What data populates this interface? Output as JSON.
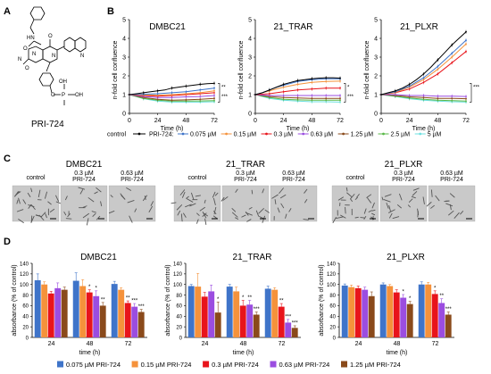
{
  "panels": {
    "a": "A",
    "b": "B",
    "c": "C",
    "d": "D"
  },
  "compound": {
    "name": "PRI-724",
    "atoms": {
      "nh": "HN",
      "o1": "O",
      "n1": "N",
      "n2": "N",
      "n3": "N",
      "o2": "O",
      "o3": "O",
      "o4": "O",
      "p": "P",
      "oh1": "OH",
      "oh2": "OH",
      "n_quin": "N"
    }
  },
  "growth": {
    "ylabel": "n-fold cell confluence",
    "xlabel": "Time (h)",
    "xticks": [
      "0",
      "24",
      "48",
      "72"
    ],
    "charts": [
      {
        "title": "DMBC21",
        "yticks": [
          "0",
          "1",
          "2",
          "3",
          "4",
          "5"
        ],
        "ymax": 5,
        "significance": [
          "**",
          "***"
        ],
        "series": [
          {
            "x": [
              0,
              6,
              12,
              18,
              24,
              30,
              36,
              42,
              48,
              54,
              60,
              66,
              72
            ],
            "y": [
              1.0,
              1.05,
              1.1,
              1.15,
              1.2,
              1.25,
              1.35,
              1.4,
              1.45,
              1.5,
              1.55,
              1.58,
              1.6
            ],
            "color": "#000000"
          },
          {
            "x": [
              0,
              12,
              24,
              36,
              48,
              60,
              72
            ],
            "y": [
              1.0,
              1.02,
              1.05,
              1.1,
              1.15,
              1.25,
              1.35
            ],
            "color": "#3F74C9"
          },
          {
            "x": [
              0,
              12,
              24,
              36,
              48,
              60,
              72
            ],
            "y": [
              1.0,
              0.98,
              0.97,
              1.0,
              1.05,
              1.1,
              1.2
            ],
            "color": "#F5923B"
          },
          {
            "x": [
              0,
              12,
              24,
              36,
              48,
              60,
              72
            ],
            "y": [
              1.0,
              0.95,
              0.92,
              0.95,
              1.0,
              1.05,
              1.1
            ],
            "color": "#E8141B"
          },
          {
            "x": [
              0,
              12,
              24,
              36,
              48,
              60,
              72
            ],
            "y": [
              1.0,
              0.9,
              0.85,
              0.85,
              0.88,
              0.9,
              0.95
            ],
            "color": "#9B4DE0"
          },
          {
            "x": [
              0,
              12,
              24,
              36,
              48,
              60,
              72
            ],
            "y": [
              1.0,
              0.85,
              0.75,
              0.7,
              0.72,
              0.75,
              0.8
            ],
            "color": "#8A4A1B"
          },
          {
            "x": [
              0,
              12,
              24,
              36,
              48,
              60,
              72
            ],
            "y": [
              1.0,
              0.8,
              0.7,
              0.65,
              0.65,
              0.66,
              0.68
            ],
            "color": "#58B847"
          },
          {
            "x": [
              0,
              12,
              24,
              36,
              48,
              60,
              72
            ],
            "y": [
              1.0,
              0.78,
              0.65,
              0.6,
              0.6,
              0.6,
              0.62
            ],
            "color": "#6DE0E0"
          }
        ]
      },
      {
        "title": "21_TRAR",
        "yticks": [
          "0",
          "1",
          "2",
          "3",
          "4",
          "5"
        ],
        "ymax": 5,
        "significance": [
          "*",
          "***"
        ],
        "series": [
          {
            "x": [
              0,
              6,
              12,
              18,
              24,
              30,
              36,
              42,
              48,
              54,
              60,
              66,
              72
            ],
            "y": [
              1.0,
              1.1,
              1.25,
              1.4,
              1.55,
              1.65,
              1.75,
              1.8,
              1.85,
              1.88,
              1.9,
              1.9,
              1.88
            ],
            "color": "#000000"
          },
          {
            "x": [
              0,
              6,
              12,
              18,
              24,
              30,
              36,
              42,
              48,
              54,
              60,
              66,
              72
            ],
            "y": [
              1.0,
              1.1,
              1.25,
              1.4,
              1.5,
              1.6,
              1.7,
              1.75,
              1.8,
              1.82,
              1.85,
              1.85,
              1.85
            ],
            "color": "#3F74C9"
          },
          {
            "x": [
              0,
              12,
              24,
              36,
              48,
              60,
              72
            ],
            "y": [
              1.0,
              1.2,
              1.4,
              1.55,
              1.65,
              1.7,
              1.72
            ],
            "color": "#F5923B"
          },
          {
            "x": [
              0,
              12,
              24,
              36,
              48,
              60,
              72
            ],
            "y": [
              1.0,
              1.05,
              1.15,
              1.25,
              1.3,
              1.35,
              1.35
            ],
            "color": "#E8141B"
          },
          {
            "x": [
              0,
              12,
              24,
              36,
              48,
              60,
              72
            ],
            "y": [
              1.0,
              0.95,
              0.95,
              0.95,
              0.95,
              0.95,
              0.95
            ],
            "color": "#9B4DE0"
          },
          {
            "x": [
              0,
              12,
              24,
              36,
              48,
              60,
              72
            ],
            "y": [
              1.0,
              0.9,
              0.85,
              0.82,
              0.8,
              0.8,
              0.8
            ],
            "color": "#8A4A1B"
          },
          {
            "x": [
              0,
              12,
              24,
              36,
              48,
              60,
              72
            ],
            "y": [
              1.0,
              0.85,
              0.75,
              0.72,
              0.7,
              0.7,
              0.7
            ],
            "color": "#58B847"
          },
          {
            "x": [
              0,
              12,
              24,
              36,
              48,
              60,
              72
            ],
            "y": [
              1.0,
              0.8,
              0.7,
              0.65,
              0.62,
              0.62,
              0.6
            ],
            "color": "#6DE0E0"
          }
        ]
      },
      {
        "title": "21_PLXR",
        "yticks": [
          "0",
          "1",
          "2",
          "3",
          "4",
          "5"
        ],
        "ymax": 5,
        "significance": [
          "***"
        ],
        "series": [
          {
            "x": [
              0,
              6,
              12,
              18,
              24,
              30,
              36,
              42,
              48,
              54,
              60,
              66,
              72
            ],
            "y": [
              1.0,
              1.1,
              1.2,
              1.35,
              1.55,
              1.8,
              2.1,
              2.45,
              2.85,
              3.25,
              3.65,
              4.0,
              4.35
            ],
            "color": "#000000"
          },
          {
            "x": [
              0,
              12,
              24,
              36,
              48,
              60,
              72
            ],
            "y": [
              1.0,
              1.15,
              1.45,
              1.9,
              2.5,
              3.2,
              3.9
            ],
            "color": "#3F74C9"
          },
          {
            "x": [
              0,
              12,
              24,
              36,
              48,
              60,
              72
            ],
            "y": [
              1.0,
              1.12,
              1.4,
              1.8,
              2.35,
              3.0,
              3.7
            ],
            "color": "#F5923B"
          },
          {
            "x": [
              0,
              12,
              24,
              36,
              48,
              60,
              72
            ],
            "y": [
              1.0,
              1.1,
              1.3,
              1.65,
              2.1,
              2.7,
              3.3
            ],
            "color": "#E8141B"
          },
          {
            "x": [
              0,
              12,
              24,
              36,
              48,
              60,
              72
            ],
            "y": [
              1.0,
              1.0,
              0.95,
              0.95,
              0.92,
              0.92,
              0.9
            ],
            "color": "#9B4DE0"
          },
          {
            "x": [
              0,
              12,
              24,
              36,
              48,
              60,
              72
            ],
            "y": [
              1.0,
              0.95,
              0.88,
              0.85,
              0.8,
              0.8,
              0.78
            ],
            "color": "#8A4A1B"
          },
          {
            "x": [
              0,
              12,
              24,
              36,
              48,
              60,
              72
            ],
            "y": [
              1.0,
              0.92,
              0.82,
              0.75,
              0.7,
              0.68,
              0.65
            ],
            "color": "#58B847"
          },
          {
            "x": [
              0,
              12,
              24,
              36,
              48,
              60,
              72
            ],
            "y": [
              1.0,
              0.9,
              0.78,
              0.7,
              0.65,
              0.62,
              0.6
            ],
            "color": "#6DE0E0"
          }
        ]
      }
    ],
    "legend": {
      "control": "control",
      "prefix": "PRI-724:",
      "items": [
        {
          "label": "0.075 µM",
          "color": "#3F74C9"
        },
        {
          "label": "0.15 µM",
          "color": "#F5923B"
        },
        {
          "label": "0.3 µM",
          "color": "#E8141B"
        },
        {
          "label": "0.63 µM",
          "color": "#9B4DE0"
        },
        {
          "label": "1.25 µM",
          "color": "#8A4A1B"
        },
        {
          "label": "2.5 µM",
          "color": "#58B847"
        },
        {
          "label": "5 µM",
          "color": "#6DE0E0"
        }
      ]
    }
  },
  "micrographs": {
    "groups": [
      {
        "title": "DMBC21",
        "labels": [
          "control",
          "0.3 µM\nPRI-724",
          "0.63 µM\nPRI-724"
        ]
      },
      {
        "title": "21_TRAR",
        "labels": [
          "control",
          "0.3 µM\nPRI-724",
          "0.63 µM\nPRI-724"
        ]
      },
      {
        "title": "21_PLXR",
        "labels": [
          "control",
          "0.3 µM\nPRI-724",
          "0.63 µM\nPRI-724"
        ]
      }
    ]
  },
  "chart_data": [
    {
      "type": "bar",
      "title": "DMBC21",
      "categories": [
        "24",
        "48",
        "72"
      ],
      "xlabel": "time (h)",
      "ylabel": "absorbance (% of control)",
      "ylim": [
        0,
        140
      ],
      "yticks": [
        "0",
        "20",
        "40",
        "60",
        "80",
        "100",
        "120",
        "140"
      ],
      "series": [
        {
          "name": "0.075 µM PRI-724",
          "color": "#3F74C9",
          "values": [
            108,
            107,
            101
          ],
          "err": [
            12,
            15,
            5
          ]
        },
        {
          "name": "0.15 µM PRI-724",
          "color": "#F5923B",
          "values": [
            100,
            97,
            90
          ],
          "err": [
            5,
            12,
            4
          ]
        },
        {
          "name": "0.3 µM PRI-724",
          "color": "#E8141B",
          "values": [
            83,
            85,
            65
          ],
          "err": [
            4,
            5,
            4
          ]
        },
        {
          "name": "0.63 µM PRI-724",
          "color": "#9B4DE0",
          "values": [
            93,
            78,
            58
          ],
          "err": [
            10,
            10,
            6
          ]
        },
        {
          "name": "1.25 µM PRI-724",
          "color": "#8A4A1B",
          "values": [
            90,
            60,
            48
          ],
          "err": [
            5,
            6,
            5
          ]
        }
      ],
      "significance": [
        [
          "",
          "",
          "",
          "",
          ""
        ],
        [
          "",
          "",
          "*",
          "*",
          "**"
        ],
        [
          "",
          "",
          "**",
          "***",
          "***"
        ]
      ]
    },
    {
      "type": "bar",
      "title": "21_TRAR",
      "categories": [
        "24",
        "48",
        "72"
      ],
      "xlabel": "time (h)",
      "ylabel": "absorbance (% of control)",
      "ylim": [
        0,
        140
      ],
      "yticks": [
        "0",
        "20",
        "40",
        "60",
        "80",
        "100",
        "120",
        "140"
      ],
      "series": [
        {
          "name": "0.075 µM PRI-724",
          "color": "#3F74C9",
          "values": [
            97,
            96,
            92
          ],
          "err": [
            3,
            4,
            5
          ]
        },
        {
          "name": "0.15 µM PRI-724",
          "color": "#F5923B",
          "values": [
            96,
            87,
            90
          ],
          "err": [
            25,
            8,
            4
          ]
        },
        {
          "name": "0.3 µM PRI-724",
          "color": "#E8141B",
          "values": [
            77,
            60,
            58
          ],
          "err": [
            8,
            10,
            6
          ]
        },
        {
          "name": "0.63 µM PRI-724",
          "color": "#9B4DE0",
          "values": [
            87,
            62,
            28
          ],
          "err": [
            12,
            8,
            6
          ]
        },
        {
          "name": "1.25 µM PRI-724",
          "color": "#8A4A1B",
          "values": [
            47,
            43,
            18
          ],
          "err": [
            20,
            5,
            4
          ]
        }
      ],
      "significance": [
        [
          "",
          "",
          "",
          "",
          "*"
        ],
        [
          "",
          "",
          "*",
          "**",
          "***"
        ],
        [
          "",
          "",
          "**",
          "***",
          "***"
        ]
      ]
    },
    {
      "type": "bar",
      "title": "21_PLXR",
      "categories": [
        "24",
        "48",
        "72"
      ],
      "xlabel": "time (h)",
      "ylabel": "absorbance (% of control)",
      "ylim": [
        0,
        140
      ],
      "yticks": [
        "0",
        "20",
        "40",
        "60",
        "80",
        "100",
        "120",
        "140"
      ],
      "series": [
        {
          "name": "0.075 µM PRI-724",
          "color": "#3F74C9",
          "values": [
            98,
            100,
            100
          ],
          "err": [
            3,
            3,
            5
          ]
        },
        {
          "name": "0.15 µM PRI-724",
          "color": "#F5923B",
          "values": [
            95,
            97,
            100
          ],
          "err": [
            4,
            3,
            4
          ]
        },
        {
          "name": "0.3 µM PRI-724",
          "color": "#E8141B",
          "values": [
            93,
            85,
            82
          ],
          "err": [
            4,
            5,
            6
          ]
        },
        {
          "name": "0.63 µM PRI-724",
          "color": "#9B4DE0",
          "values": [
            90,
            75,
            65
          ],
          "err": [
            5,
            6,
            8
          ]
        },
        {
          "name": "1.25 µM PRI-724",
          "color": "#8A4A1B",
          "values": [
            78,
            63,
            43
          ],
          "err": [
            8,
            5,
            5
          ]
        }
      ],
      "significance": [
        [
          "",
          "",
          "",
          "",
          ""
        ],
        [
          "",
          "",
          "",
          "*",
          "*"
        ],
        [
          "",
          "",
          "*",
          "**",
          "***"
        ]
      ]
    }
  ]
}
